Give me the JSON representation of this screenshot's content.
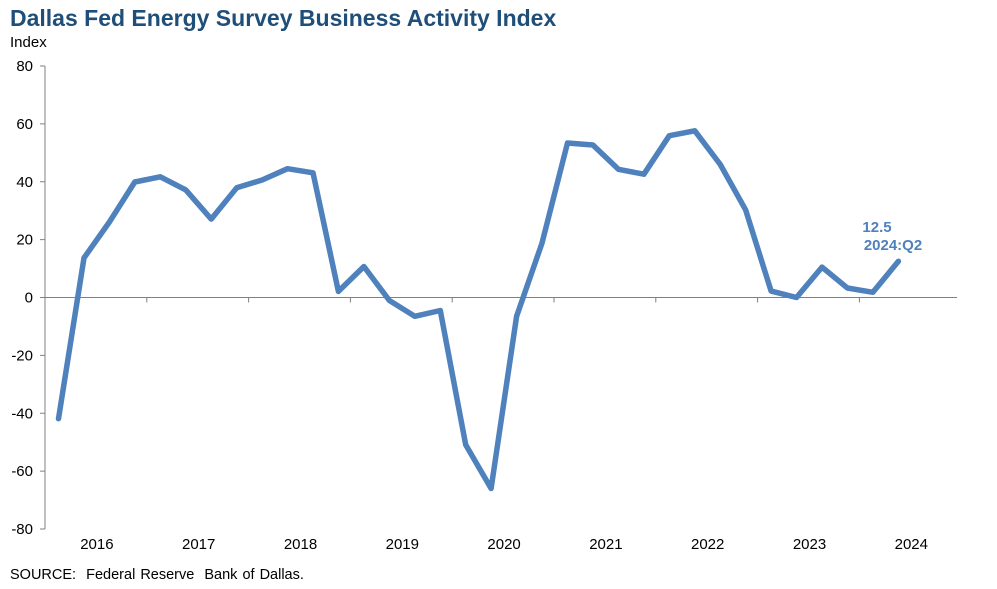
{
  "chart_data": {
    "type": "line",
    "title": "Dallas Fed Energy Survey Business Activity Index",
    "ylabel": "Index",
    "xlabel": "",
    "ylim": [
      -80,
      80
    ],
    "yticks": [
      80,
      60,
      40,
      20,
      0,
      -20,
      -40,
      -60,
      -80
    ],
    "xtick_labels": [
      "2016",
      "2017",
      "2018",
      "2019",
      "2020",
      "2021",
      "2022",
      "2023",
      "2024"
    ],
    "x": [
      "2016:Q1",
      "2016:Q2",
      "2016:Q3",
      "2016:Q4",
      "2017:Q1",
      "2017:Q2",
      "2017:Q3",
      "2017:Q4",
      "2018:Q1",
      "2018:Q2",
      "2018:Q3",
      "2018:Q4",
      "2019:Q1",
      "2019:Q2",
      "2019:Q3",
      "2019:Q4",
      "2020:Q1",
      "2020:Q2",
      "2020:Q3",
      "2020:Q4",
      "2021:Q1",
      "2021:Q2",
      "2021:Q3",
      "2021:Q4",
      "2022:Q1",
      "2022:Q2",
      "2022:Q3",
      "2022:Q4",
      "2023:Q1",
      "2023:Q2",
      "2023:Q3",
      "2023:Q4",
      "2024:Q1",
      "2024:Q2"
    ],
    "series": [
      {
        "values": [
          -41.9,
          13.7,
          26.1,
          39.9,
          41.7,
          37.2,
          27.1,
          37.9,
          40.6,
          44.5,
          43.1,
          2.1,
          10.7,
          -1.0,
          -6.5,
          -4.5,
          -50.9,
          -66.0,
          -6.5,
          18.8,
          53.4,
          52.7,
          44.3,
          42.6,
          55.9,
          57.6,
          46.0,
          30.3,
          2.2,
          0.0,
          10.5,
          3.3,
          1.8,
          12.5
        ],
        "color": "#4f81bd"
      }
    ],
    "annotation": {
      "value_text": "12.5",
      "period_text": "2024:Q2",
      "color": "#4f81bd"
    },
    "grid": false,
    "legend": "none"
  },
  "source": "SOURCE:  Federal Reserve  Bank of Dallas."
}
